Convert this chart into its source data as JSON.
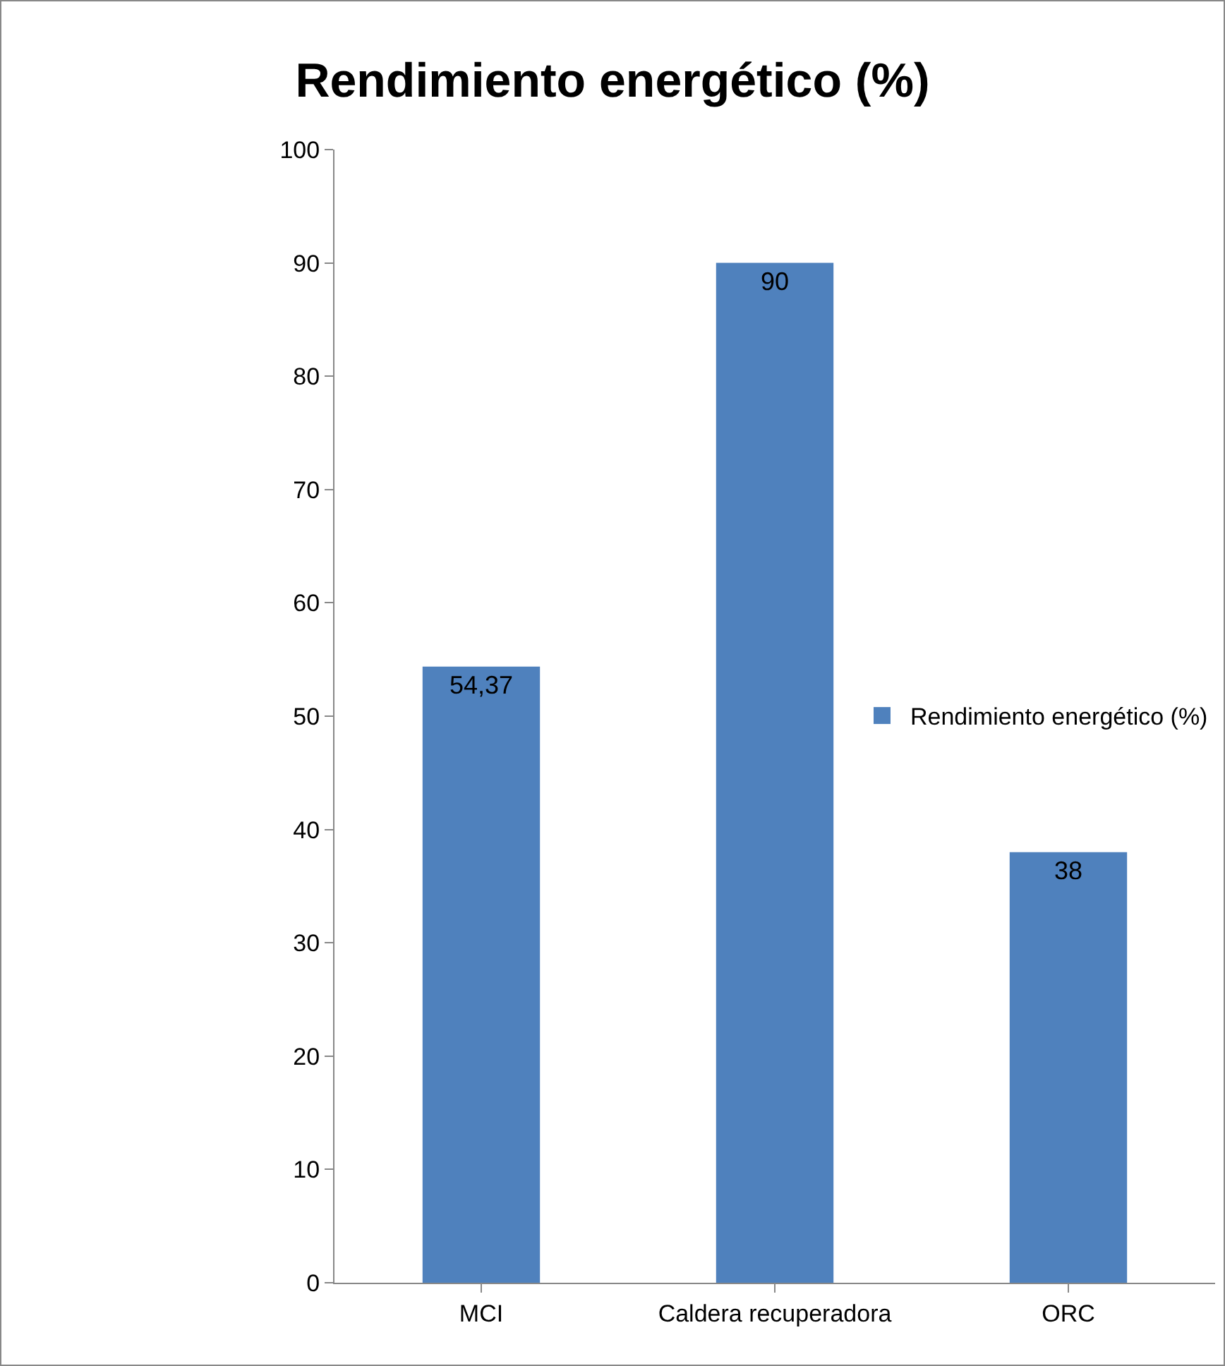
{
  "chart_data": {
    "type": "bar",
    "title": "Rendimiento energético (%)",
    "categories": [
      "MCI",
      "Caldera recuperadora",
      "ORC"
    ],
    "series": [
      {
        "name": "Rendimiento energético (%)",
        "color": "#4f81bd",
        "values": [
          54.37,
          90,
          38
        ]
      }
    ],
    "value_labels": [
      "54,37",
      "90",
      "38"
    ],
    "ylim": [
      0,
      100
    ],
    "yticks": [
      0,
      10,
      20,
      30,
      40,
      50,
      60,
      70,
      80,
      90,
      100
    ],
    "grid": false,
    "legend": "right"
  }
}
